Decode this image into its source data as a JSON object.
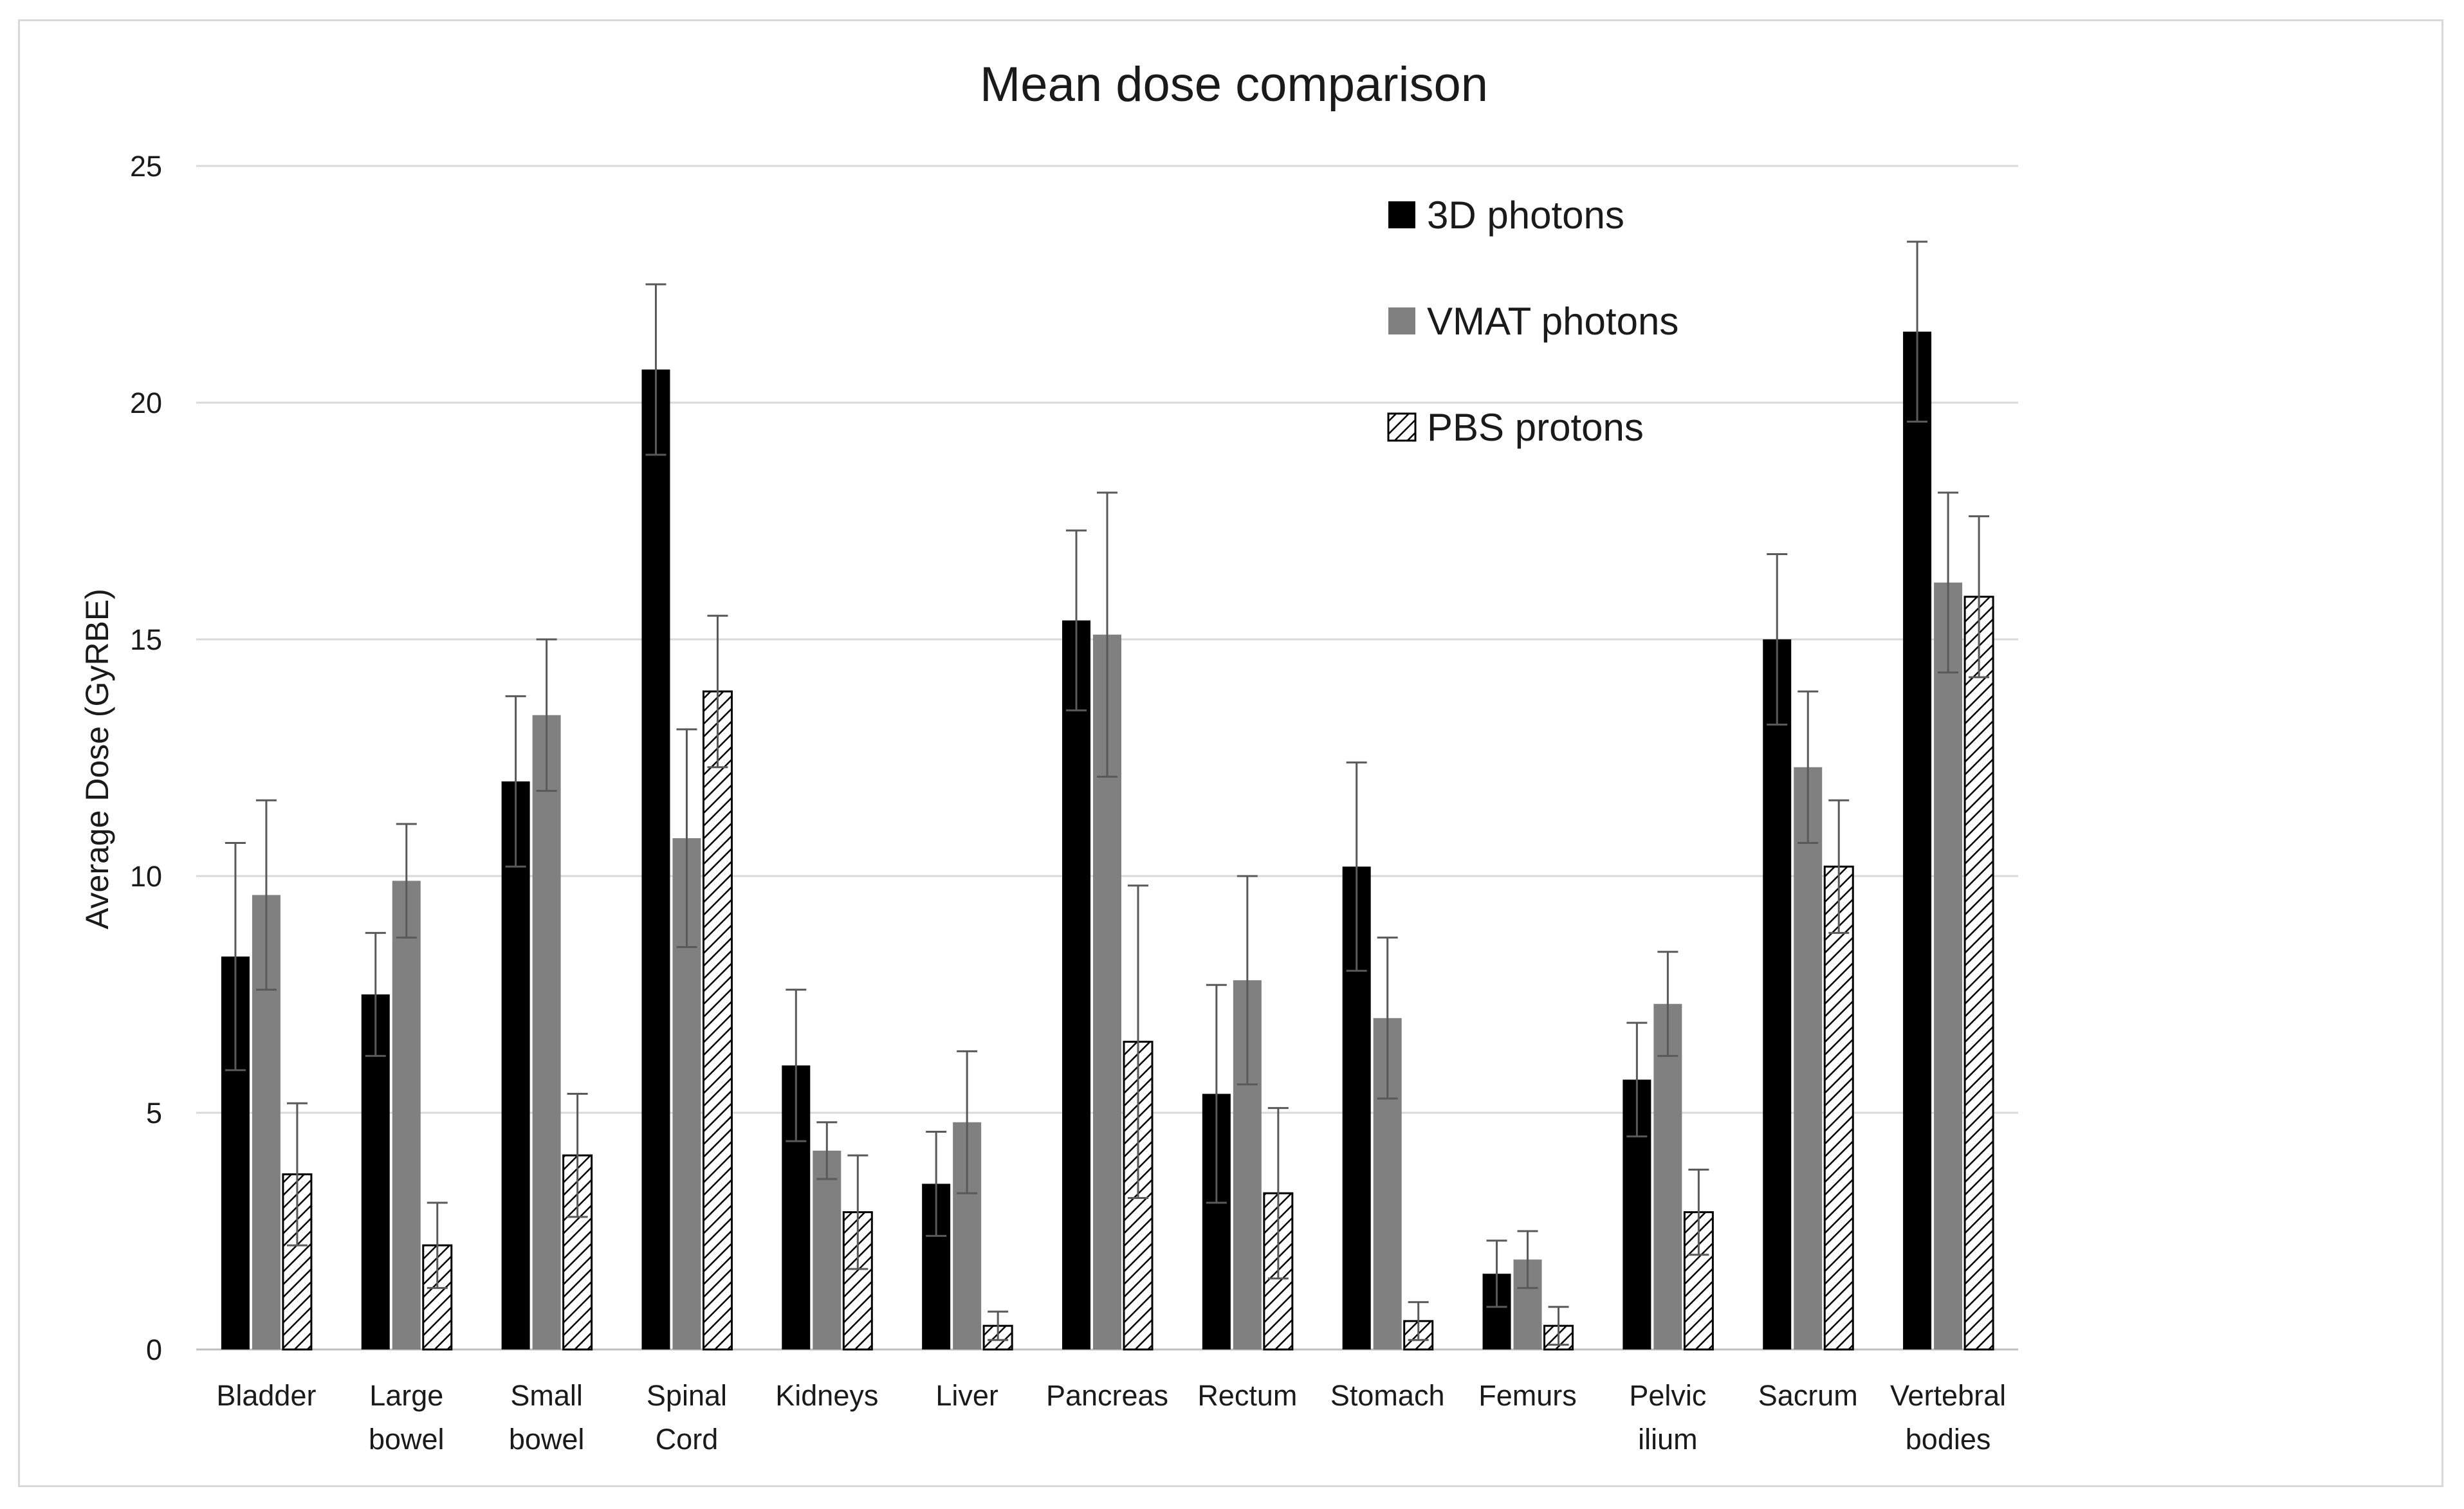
{
  "chart_data": {
    "type": "bar",
    "title": "Mean dose comparison",
    "xlabel": "",
    "ylabel": "Average Dose (GyRBE)",
    "ylim": [
      0,
      25
    ],
    "yticks": [
      0,
      5,
      10,
      15,
      20,
      25
    ],
    "grid": true,
    "legend_position": "top-right",
    "categories": [
      [
        "Bladder"
      ],
      [
        "Large",
        "bowel"
      ],
      [
        "Small",
        "bowel"
      ],
      [
        "Spinal",
        "Cord"
      ],
      [
        "Kidneys"
      ],
      [
        "Liver"
      ],
      [
        "Pancreas"
      ],
      [
        "Rectum"
      ],
      [
        "Stomach"
      ],
      [
        "Femurs"
      ],
      [
        "Pelvic",
        "ilium"
      ],
      [
        "Sacrum"
      ],
      [
        "Vertebral",
        "bodies"
      ]
    ],
    "series": [
      {
        "name": "3D photons",
        "style": "solid",
        "color": "#000000",
        "values": [
          8.3,
          7.5,
          12.0,
          20.7,
          6.0,
          3.5,
          15.4,
          5.4,
          10.2,
          1.6,
          5.7,
          15.0,
          21.5
        ],
        "errors": [
          2.4,
          1.3,
          1.8,
          1.8,
          1.6,
          1.1,
          1.9,
          2.3,
          2.2,
          0.7,
          1.2,
          1.8,
          1.9
        ]
      },
      {
        "name": "VMAT photons",
        "style": "solid",
        "color": "#808080",
        "values": [
          9.6,
          9.9,
          13.4,
          10.8,
          4.2,
          4.8,
          15.1,
          7.8,
          7.0,
          1.9,
          7.3,
          12.3,
          16.2
        ],
        "errors": [
          2.0,
          1.2,
          1.6,
          2.3,
          0.6,
          1.5,
          3.0,
          2.2,
          1.7,
          0.6,
          1.1,
          1.6,
          1.9
        ]
      },
      {
        "name": "PBS protons",
        "style": "hatched",
        "color": "#000000",
        "values": [
          3.7,
          2.2,
          4.1,
          13.9,
          2.9,
          0.5,
          6.5,
          3.3,
          0.6,
          0.5,
          2.9,
          10.2,
          15.9
        ],
        "errors": [
          1.5,
          0.9,
          1.3,
          1.6,
          1.2,
          0.3,
          3.3,
          1.8,
          0.4,
          0.4,
          0.9,
          1.4,
          1.7
        ]
      }
    ]
  }
}
